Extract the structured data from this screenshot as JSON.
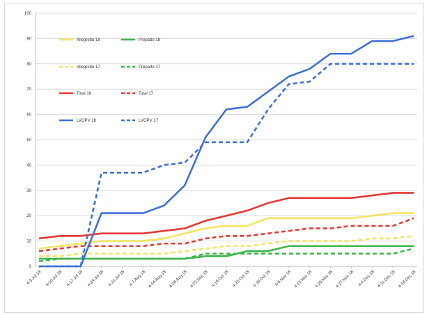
{
  "chart_data": {
    "type": "line",
    "title": "",
    "xlabel": "",
    "ylabel": "",
    "ylim": [
      0,
      100
    ],
    "y_ticks": [
      "0",
      "10",
      "20",
      "30",
      "40",
      "50",
      "60",
      "70",
      "80",
      "90",
      "100"
    ],
    "grid": "horizontal",
    "legend_position": "top-left (inside plot)",
    "categories": [
      "4-3.Jul 18",
      "4-10.Jul 18",
      "4-17.Jul 18",
      "4-24.Jul 18",
      "4-31.Jul 18",
      "4-7.Aug 18",
      "4-14.Aug 18",
      "4-28.Aug 18",
      "4-25.Sep 18",
      "4-16.Oct 18",
      "4-23.Oct 18",
      "4-30.Oct 18",
      "4-6.Nov 18",
      "4-13.Nov 18",
      "4-20.Nov 18",
      "4-27.Nov 18",
      "4-4.Dec 18",
      "4-11.Dec 18",
      "4-18.Dec 18"
    ],
    "series": [
      {
        "name": "Allegretto 18",
        "color": "#f5e463",
        "dash": "solid",
        "values": [
          7,
          8,
          9,
          10,
          10,
          10,
          11,
          13,
          15,
          16,
          16,
          19,
          19,
          19,
          19,
          19,
          20,
          21,
          21
        ]
      },
      {
        "name": "Prepatto 18",
        "color": "#3cb54a",
        "dash": "solid",
        "values": [
          3,
          3,
          3,
          3,
          3,
          3,
          3,
          3,
          4,
          4,
          6,
          6,
          8,
          8,
          8,
          8,
          8,
          8,
          8
        ]
      },
      {
        "name": "Allegretto 17",
        "color": "#f5e463",
        "dash": "dashed",
        "values": [
          4,
          4,
          5,
          5,
          5,
          5,
          5,
          6,
          7,
          8,
          8,
          9,
          10,
          10,
          10,
          10,
          11,
          11,
          12
        ]
      },
      {
        "name": "Prepatto 17",
        "color": "#3cb54a",
        "dash": "dashed",
        "values": [
          2,
          3,
          3,
          3,
          3,
          3,
          3,
          3,
          5,
          5,
          5,
          5,
          5,
          5,
          5,
          5,
          5,
          5,
          7
        ]
      },
      {
        "name": "Total 18",
        "color": "#e53935",
        "dash": "solid",
        "values": [
          11,
          12,
          12,
          13,
          13,
          13,
          14,
          15,
          18,
          20,
          22,
          25,
          27,
          27,
          27,
          27,
          28,
          29,
          29
        ]
      },
      {
        "name": "Total 17",
        "color": "#e53935",
        "dash": "dashed",
        "values": [
          6,
          7,
          8,
          8,
          8,
          8,
          9,
          9,
          11,
          12,
          12,
          13,
          14,
          15,
          15,
          16,
          16,
          16,
          19
        ]
      },
      {
        "name": "LVOPV 18",
        "color": "#3f6fd8",
        "dash": "solid",
        "values": [
          0,
          0,
          0,
          21,
          21,
          21,
          24,
          32,
          51,
          62,
          63,
          69,
          75,
          78,
          84,
          84,
          89,
          89,
          91
        ]
      },
      {
        "name": "LVOPV 17",
        "color": "#3f6fd8",
        "dash": "dashed",
        "values": [
          0,
          0,
          0,
          37,
          37,
          37,
          40,
          41,
          49,
          49,
          49,
          62,
          72,
          73,
          80,
          80,
          80,
          80,
          80
        ]
      }
    ]
  }
}
